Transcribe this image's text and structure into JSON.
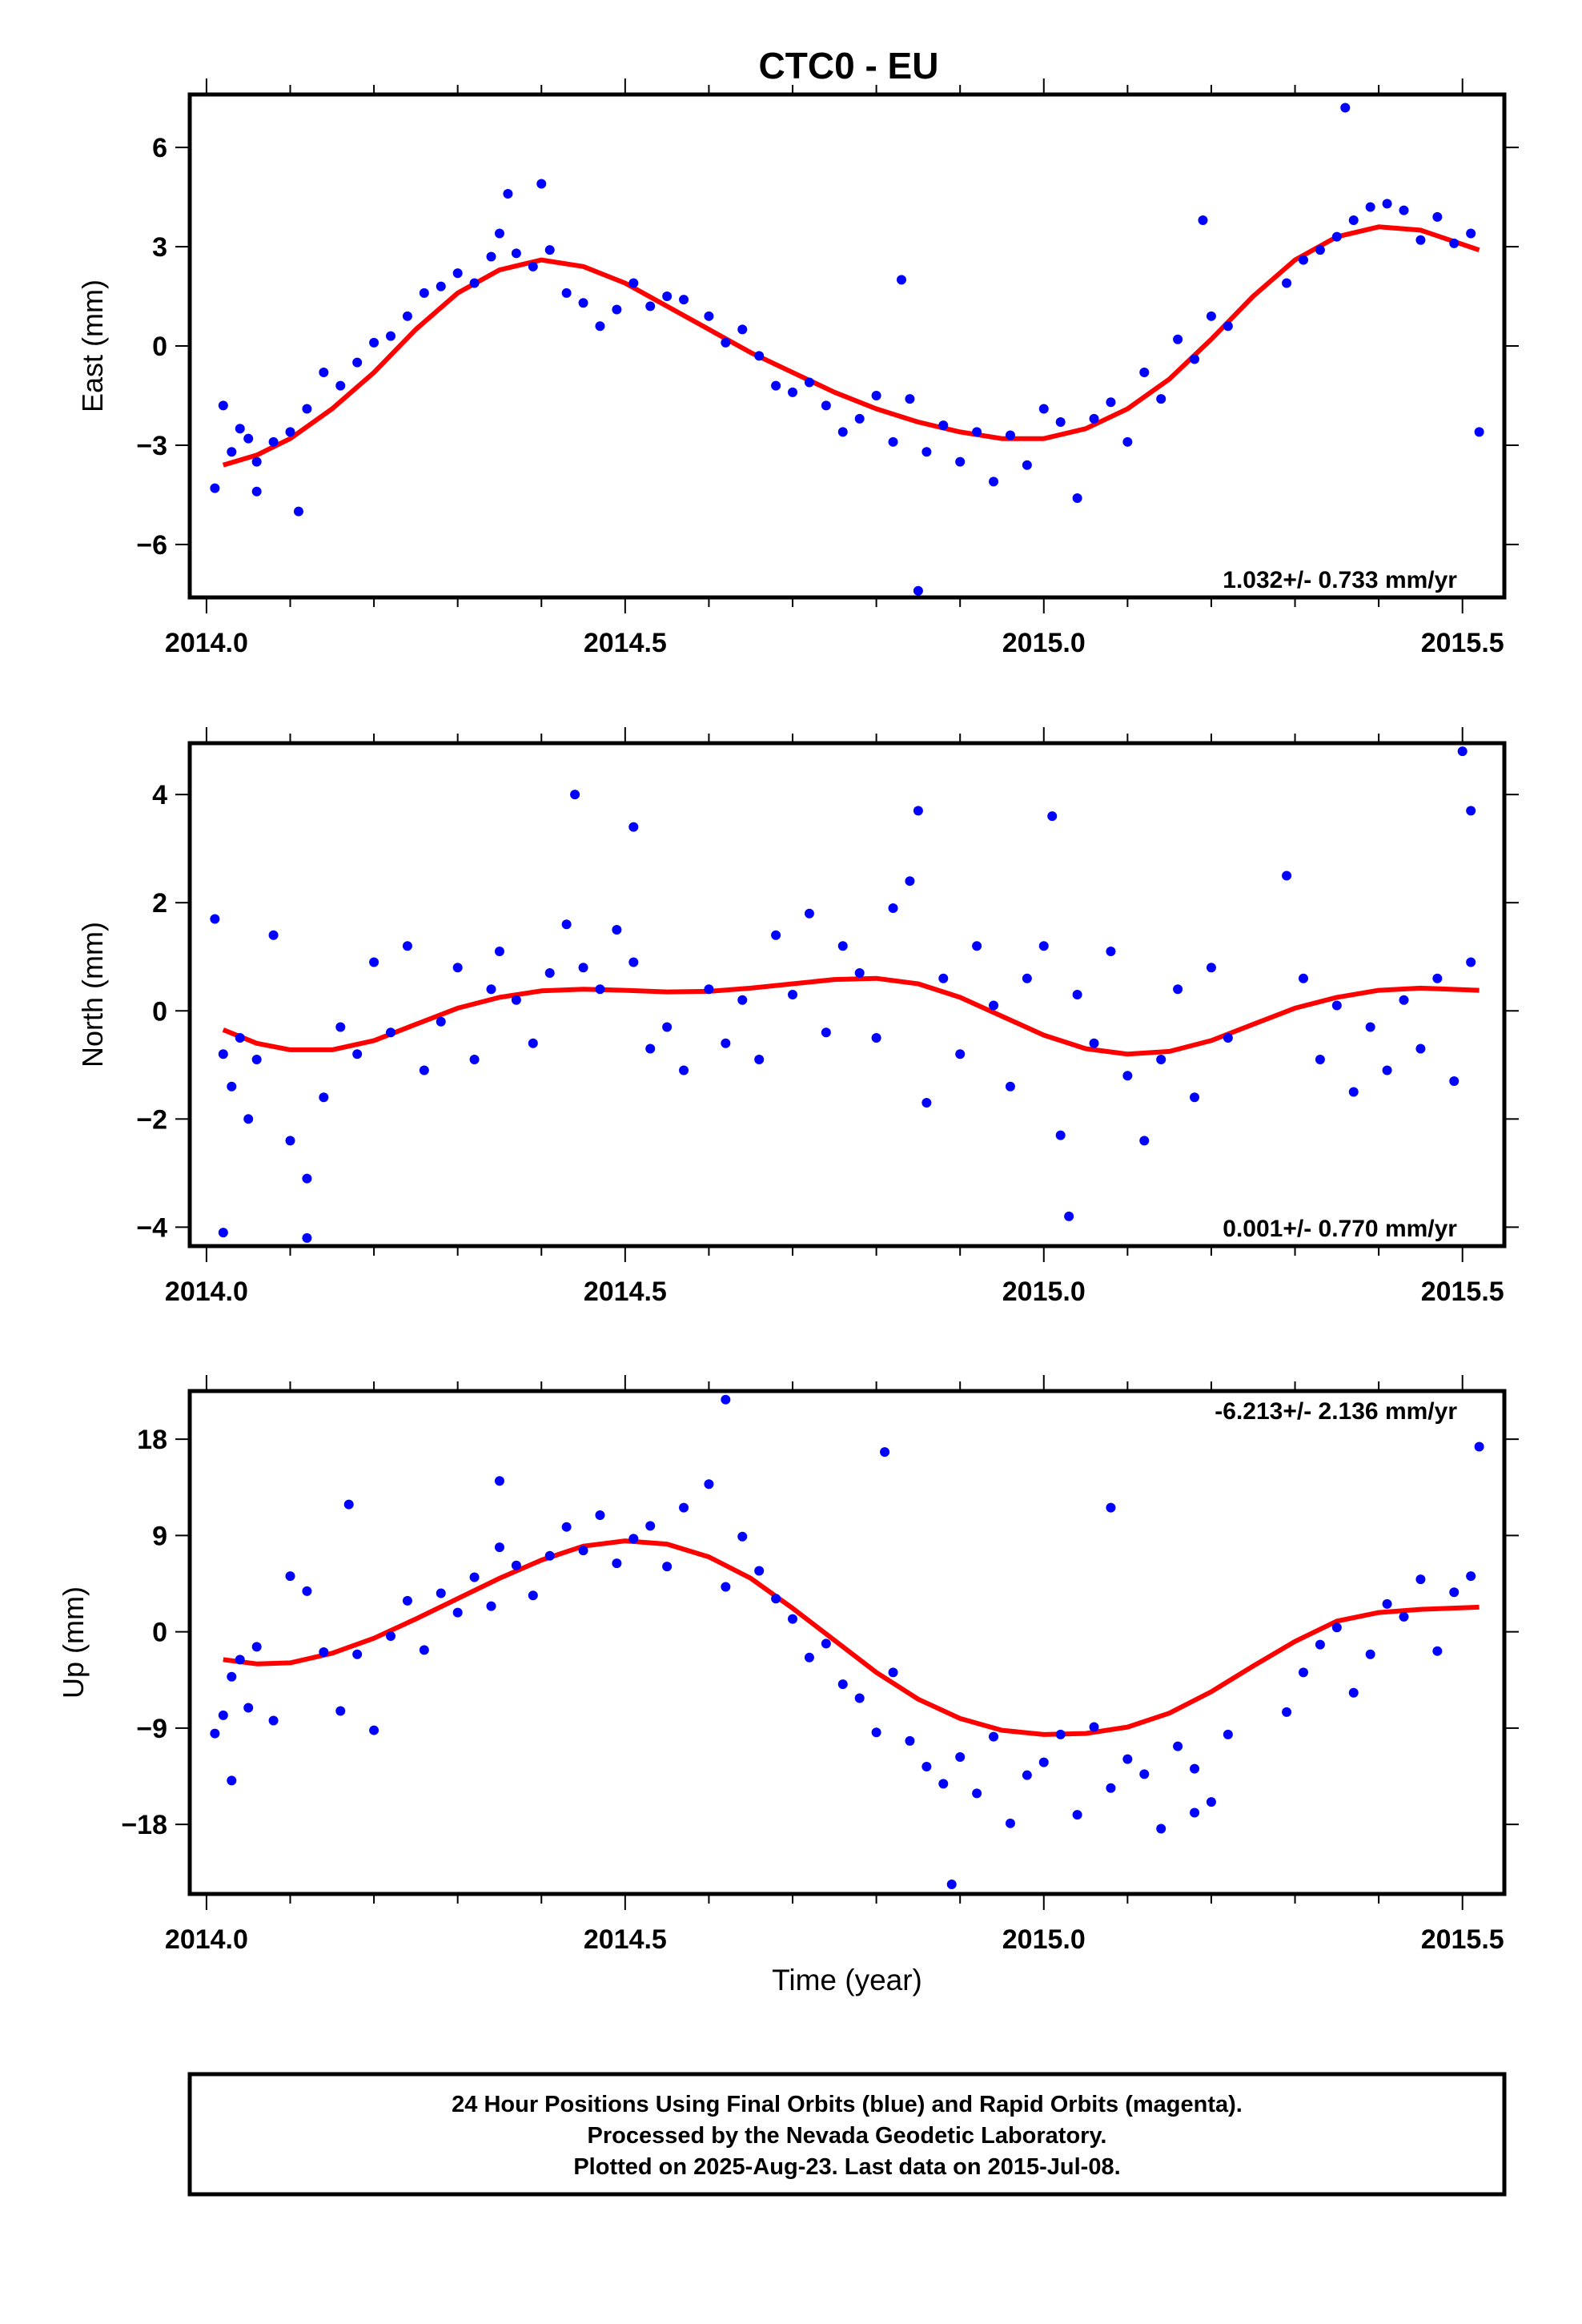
{
  "title": "CTC0 - EU",
  "xlabel": "Time (year)",
  "footer": [
    "24 Hour Positions Using Final Orbits (blue) and Rapid Orbits (magenta).",
    "Processed by the Nevada Geodetic Laboratory.",
    "Plotted on 2025-Aug-23. Last data on 2015-Jul-08."
  ],
  "colors": {
    "final_orbits": "#0000ff",
    "fit": "#ff0000",
    "frame": "#000000"
  },
  "chart_data": [
    {
      "type": "scatter",
      "ylabel": "East (mm)",
      "rate_label": "1.032+/- 0.733 mm/yr",
      "xlim": [
        2013.98,
        2015.55
      ],
      "ylim": [
        -7.6,
        7.6
      ],
      "xticks": [
        2014.0,
        2014.5,
        2015.0,
        2015.5
      ],
      "xtick_labels": [
        "2014.0",
        "2014.5",
        "2015.0",
        "2015.5"
      ],
      "yticks": [
        -6,
        -3,
        0,
        3,
        6
      ],
      "ytick_labels": [
        "−6",
        "−3",
        "0",
        "3",
        "6"
      ],
      "x": [
        2014.01,
        2014.02,
        2014.03,
        2014.04,
        2014.05,
        2014.06,
        2014.08,
        2014.1,
        2014.12,
        2014.14,
        2014.16,
        2014.18,
        2014.2,
        2014.22,
        2014.24,
        2014.26,
        2014.28,
        2014.3,
        2014.32,
        2014.34,
        2014.35,
        2014.37,
        2014.39,
        2014.41,
        2014.43,
        2014.45,
        2014.47,
        2014.49,
        2014.51,
        2014.53,
        2014.55,
        2014.57,
        2014.6,
        2014.62,
        2014.64,
        2014.66,
        2014.68,
        2014.7,
        2014.72,
        2014.74,
        2014.76,
        2014.78,
        2014.8,
        2014.82,
        2014.84,
        2014.86,
        2014.88,
        2014.9,
        2014.92,
        2014.94,
        2014.96,
        2014.98,
        2015.0,
        2015.02,
        2015.04,
        2015.06,
        2015.08,
        2015.1,
        2015.12,
        2015.14,
        2015.16,
        2015.18,
        2015.2,
        2015.22,
        2015.29,
        2015.31,
        2015.33,
        2015.35,
        2015.37,
        2015.39,
        2015.41,
        2015.43,
        2015.45,
        2015.47,
        2015.49,
        2015.51,
        2014.36,
        2014.4,
        2014.83,
        2014.85,
        2014.06,
        2014.11,
        2015.19,
        2015.36,
        2015.52
      ],
      "y": [
        -4.3,
        -1.8,
        -3.2,
        -2.5,
        -2.8,
        -3.5,
        -2.9,
        -2.6,
        -1.9,
        -0.8,
        -1.2,
        -0.5,
        0.1,
        0.3,
        0.9,
        1.6,
        1.8,
        2.2,
        1.9,
        2.7,
        3.4,
        2.8,
        2.4,
        2.9,
        1.6,
        1.3,
        0.6,
        1.1,
        1.9,
        1.2,
        1.5,
        1.4,
        0.9,
        0.1,
        0.5,
        -0.3,
        -1.2,
        -1.4,
        -1.1,
        -1.8,
        -2.6,
        -2.2,
        -1.5,
        -2.9,
        -1.6,
        -3.2,
        -2.4,
        -3.5,
        -2.6,
        -4.1,
        -2.7,
        -3.6,
        -1.9,
        -2.3,
        -4.6,
        -2.2,
        -1.7,
        -2.9,
        -0.8,
        -1.6,
        0.2,
        -0.4,
        0.9,
        0.6,
        1.9,
        2.6,
        2.9,
        3.3,
        3.8,
        4.2,
        4.3,
        4.1,
        3.2,
        3.9,
        3.1,
        3.4,
        4.6,
        4.9,
        2.0,
        -7.4,
        -4.4,
        -5.0,
        3.8,
        7.2,
        -2.6
      ]
    },
    {
      "type": "scatter",
      "ylabel": "North (mm)",
      "rate_label": "0.001+/- 0.770 mm/yr",
      "xlim": [
        2013.98,
        2015.55
      ],
      "ylim": [
        -4.35,
        4.95
      ],
      "xticks": [
        2014.0,
        2014.5,
        2015.0,
        2015.5
      ],
      "xtick_labels": [
        "2014.0",
        "2014.5",
        "2015.0",
        "2015.5"
      ],
      "yticks": [
        -4,
        -2,
        0,
        2,
        4
      ],
      "ytick_labels": [
        "−4",
        "−2",
        "0",
        "2",
        "4"
      ],
      "x": [
        2014.01,
        2014.02,
        2014.03,
        2014.04,
        2014.05,
        2014.06,
        2014.08,
        2014.1,
        2014.12,
        2014.14,
        2014.16,
        2014.18,
        2014.2,
        2014.22,
        2014.24,
        2014.26,
        2014.28,
        2014.3,
        2014.32,
        2014.34,
        2014.35,
        2014.37,
        2014.39,
        2014.41,
        2014.43,
        2014.45,
        2014.47,
        2014.49,
        2014.51,
        2014.53,
        2014.55,
        2014.57,
        2014.6,
        2014.62,
        2014.64,
        2014.66,
        2014.68,
        2014.7,
        2014.72,
        2014.74,
        2014.76,
        2014.78,
        2014.8,
        2014.82,
        2014.84,
        2014.86,
        2014.88,
        2014.9,
        2014.92,
        2014.94,
        2014.96,
        2014.98,
        2015.0,
        2015.02,
        2015.04,
        2015.06,
        2015.08,
        2015.1,
        2015.12,
        2015.14,
        2015.16,
        2015.18,
        2015.2,
        2015.22,
        2015.29,
        2015.31,
        2015.33,
        2015.35,
        2015.37,
        2015.39,
        2015.41,
        2015.43,
        2015.45,
        2015.47,
        2015.49,
        2015.51,
        2014.02,
        2014.12,
        2014.44,
        2014.51,
        2014.85,
        2015.5,
        2015.51,
        2015.01,
        2015.03
      ],
      "y": [
        1.7,
        -0.8,
        -1.4,
        -0.5,
        -2.0,
        -0.9,
        1.4,
        -2.4,
        -3.1,
        -1.6,
        -0.3,
        -0.8,
        0.9,
        -0.4,
        1.2,
        -1.1,
        -0.2,
        0.8,
        -0.9,
        0.4,
        1.1,
        0.2,
        -0.6,
        0.7,
        1.6,
        0.8,
        0.4,
        1.5,
        0.9,
        -0.7,
        -0.3,
        -1.1,
        0.4,
        -0.6,
        0.2,
        -0.9,
        1.4,
        0.3,
        1.8,
        -0.4,
        1.2,
        0.7,
        -0.5,
        1.9,
        2.4,
        -1.7,
        0.6,
        -0.8,
        1.2,
        0.1,
        -1.4,
        0.6,
        1.2,
        -2.3,
        0.3,
        -0.6,
        1.1,
        -1.2,
        -2.4,
        -0.9,
        0.4,
        -1.6,
        0.8,
        -0.5,
        2.5,
        0.6,
        -0.9,
        0.1,
        -1.5,
        -0.3,
        -1.1,
        0.2,
        -0.7,
        0.6,
        -1.3,
        0.9,
        -4.1,
        -4.2,
        4.0,
        3.4,
        3.7,
        4.8,
        3.7,
        3.6,
        -3.8
      ]
    },
    {
      "type": "scatter",
      "ylabel": "Up (mm)",
      "rate_label": "-6.213+/- 2.136 mm/yr",
      "xlim": [
        2013.98,
        2015.55
      ],
      "ylim": [
        -24.5,
        22.5
      ],
      "xticks": [
        2014.0,
        2014.5,
        2015.0,
        2015.5
      ],
      "xtick_labels": [
        "2014.0",
        "2014.5",
        "2015.0",
        "2015.5"
      ],
      "yticks": [
        -18,
        -9,
        0,
        9,
        18
      ],
      "ytick_labels": [
        "−18",
        "−9",
        "0",
        "9",
        "18"
      ],
      "x": [
        2014.01,
        2014.02,
        2014.03,
        2014.04,
        2014.05,
        2014.06,
        2014.08,
        2014.1,
        2014.12,
        2014.14,
        2014.16,
        2014.18,
        2014.2,
        2014.22,
        2014.24,
        2014.26,
        2014.28,
        2014.3,
        2014.32,
        2014.34,
        2014.35,
        2014.37,
        2014.39,
        2014.41,
        2014.43,
        2014.45,
        2014.47,
        2014.49,
        2014.51,
        2014.53,
        2014.55,
        2014.57,
        2014.6,
        2014.62,
        2014.64,
        2014.66,
        2014.68,
        2014.7,
        2014.72,
        2014.74,
        2014.76,
        2014.78,
        2014.8,
        2014.82,
        2014.84,
        2014.86,
        2014.88,
        2014.9,
        2014.92,
        2014.94,
        2014.96,
        2014.98,
        2015.0,
        2015.02,
        2015.04,
        2015.06,
        2015.08,
        2015.1,
        2015.12,
        2015.14,
        2015.16,
        2015.18,
        2015.2,
        2015.22,
        2015.29,
        2015.31,
        2015.33,
        2015.35,
        2015.37,
        2015.39,
        2015.41,
        2015.43,
        2015.45,
        2015.47,
        2015.49,
        2015.51,
        2014.03,
        2014.17,
        2014.35,
        2014.62,
        2014.81,
        2014.89,
        2015.08,
        2015.52,
        2015.18
      ],
      "y": [
        -9.5,
        -7.8,
        -4.2,
        -2.6,
        -7.1,
        -1.4,
        -8.3,
        5.2,
        3.8,
        -1.9,
        -7.4,
        -2.1,
        -9.2,
        -0.4,
        2.9,
        -1.7,
        3.6,
        1.8,
        5.1,
        2.4,
        7.9,
        6.2,
        3.4,
        7.1,
        9.8,
        7.6,
        10.9,
        6.4,
        8.7,
        9.9,
        6.1,
        11.6,
        13.8,
        4.2,
        8.9,
        5.7,
        3.1,
        1.2,
        -2.4,
        -1.1,
        -4.9,
        -6.2,
        -9.4,
        -3.8,
        -10.2,
        -12.6,
        -14.2,
        -11.7,
        -15.1,
        -9.8,
        -17.9,
        -13.4,
        -12.2,
        -9.6,
        -17.1,
        -8.9,
        -14.6,
        -11.9,
        -13.3,
        -18.4,
        -10.7,
        -12.8,
        -15.9,
        -9.6,
        -7.5,
        -3.8,
        -1.2,
        0.4,
        -5.7,
        -2.1,
        2.6,
        1.4,
        4.9,
        -1.8,
        3.7,
        5.2,
        -13.9,
        11.9,
        14.1,
        21.7,
        16.8,
        -23.6,
        11.6,
        17.3,
        -16.9
      ]
    }
  ],
  "fit_curves": [
    {
      "x": [
        2014.02,
        2014.06,
        2014.1,
        2014.15,
        2014.2,
        2014.25,
        2014.3,
        2014.35,
        2014.4,
        2014.45,
        2014.5,
        2014.55,
        2014.6,
        2014.65,
        2014.7,
        2014.75,
        2014.8,
        2014.85,
        2014.9,
        2014.95,
        2015.0,
        2015.05,
        2015.1,
        2015.15,
        2015.2,
        2015.25,
        2015.3,
        2015.35,
        2015.4,
        2015.45,
        2015.52
      ],
      "y": [
        -3.6,
        -3.3,
        -2.8,
        -1.9,
        -0.8,
        0.5,
        1.6,
        2.3,
        2.6,
        2.4,
        1.9,
        1.2,
        0.5,
        -0.2,
        -0.8,
        -1.4,
        -1.9,
        -2.3,
        -2.6,
        -2.8,
        -2.8,
        -2.5,
        -1.9,
        -1.0,
        0.2,
        1.5,
        2.6,
        3.3,
        3.6,
        3.5,
        2.9
      ]
    },
    {
      "x": [
        2014.02,
        2014.06,
        2014.1,
        2014.15,
        2014.2,
        2014.25,
        2014.3,
        2014.35,
        2014.4,
        2014.45,
        2014.5,
        2014.55,
        2014.6,
        2014.65,
        2014.7,
        2014.75,
        2014.8,
        2014.85,
        2014.9,
        2014.95,
        2015.0,
        2015.05,
        2015.1,
        2015.15,
        2015.2,
        2015.25,
        2015.3,
        2015.35,
        2015.4,
        2015.45,
        2015.52
      ],
      "y": [
        -0.35,
        -0.6,
        -0.72,
        -0.72,
        -0.55,
        -0.25,
        0.05,
        0.25,
        0.37,
        0.4,
        0.38,
        0.35,
        0.36,
        0.42,
        0.5,
        0.58,
        0.6,
        0.5,
        0.25,
        -0.1,
        -0.45,
        -0.7,
        -0.8,
        -0.75,
        -0.55,
        -0.25,
        0.05,
        0.25,
        0.38,
        0.42,
        0.38
      ]
    },
    {
      "x": [
        2014.02,
        2014.06,
        2014.1,
        2014.15,
        2014.2,
        2014.25,
        2014.3,
        2014.35,
        2014.4,
        2014.45,
        2014.5,
        2014.55,
        2014.6,
        2014.65,
        2014.7,
        2014.75,
        2014.8,
        2014.85,
        2014.9,
        2014.95,
        2015.0,
        2015.05,
        2015.1,
        2015.15,
        2015.2,
        2015.25,
        2015.3,
        2015.35,
        2015.4,
        2015.45,
        2015.52
      ],
      "y": [
        -2.6,
        -3.0,
        -2.9,
        -2.0,
        -0.6,
        1.2,
        3.1,
        5.0,
        6.7,
        8.0,
        8.5,
        8.2,
        7.0,
        5.0,
        2.2,
        -0.8,
        -3.8,
        -6.3,
        -8.1,
        -9.2,
        -9.6,
        -9.5,
        -8.9,
        -7.6,
        -5.6,
        -3.2,
        -0.9,
        1.0,
        1.8,
        2.1,
        2.3
      ]
    }
  ]
}
